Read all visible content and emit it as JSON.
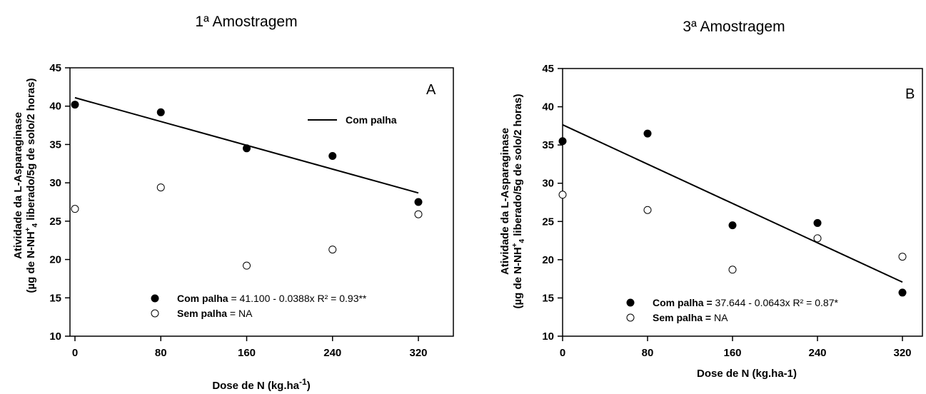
{
  "chart_data": [
    {
      "type": "scatter",
      "title": "1ª Amostragem",
      "panel_label": "A",
      "xlabel": "Dose de N (kg.ha-1)",
      "xlabel_main": "Dose de N (kg.ha",
      "xlabel_sup": "-1",
      "xlabel_end": ")",
      "ylabel_line1": "Atividade da L-Asparaginase",
      "ylabel_line2": "(µg de N-NH+4 liberado/5g de solo/2 horas)",
      "ylabel_line2_pre": "(µg de N-NH",
      "ylabel_line2_sup": "+",
      "ylabel_line2_sub": "4",
      "ylabel_line2_post": " liberado/5g de solo/2 horas)",
      "x_ticks": [
        "0",
        "80",
        "160",
        "240",
        "320"
      ],
      "y_ticks": [
        "10",
        "15",
        "20",
        "25",
        "30",
        "35",
        "40",
        "45"
      ],
      "xlim": [
        0,
        350
      ],
      "ylim": [
        10,
        45
      ],
      "grid": false,
      "series": [
        {
          "name": "Com palha",
          "marker": "filled",
          "x": [
            0,
            80,
            160,
            240,
            320
          ],
          "y": [
            40.2,
            39.2,
            34.5,
            33.5,
            27.5
          ]
        },
        {
          "name": "Sem palha",
          "marker": "open",
          "x": [
            0,
            80,
            160,
            240,
            320
          ],
          "y": [
            26.6,
            29.4,
            19.2,
            21.3,
            25.9
          ]
        }
      ],
      "fit_line": {
        "intercept": 41.1,
        "slope": -0.0388,
        "x_range": [
          0,
          320
        ]
      },
      "line_legend": "Com palha",
      "legend_entries": [
        {
          "name": "Com palha",
          "eq": " = 41.100 - 0.0388x R² = 0.93**",
          "marker": "filled"
        },
        {
          "name": "Sem palha",
          "eq": " = NA",
          "marker": "open"
        }
      ]
    },
    {
      "type": "scatter",
      "title": "3ª Amostragem",
      "panel_label": "B",
      "xlabel": "Dose de N (kg.ha-1)",
      "ylabel_line1": "Atividade da L-Asparaginase",
      "ylabel_line2": "(µg de N-NH+4 liberado/5g de solo/2 horas)",
      "ylabel_line2_pre": "(µg de N-NH",
      "ylabel_line2_sup": "+",
      "ylabel_line2_sub": "4",
      "ylabel_line2_post": " liberado/5g de solo/2 horas)",
      "x_ticks": [
        "0",
        "80",
        "160",
        "240",
        "320"
      ],
      "y_ticks": [
        "10",
        "15",
        "20",
        "25",
        "30",
        "35",
        "40",
        "45"
      ],
      "xlim": [
        0,
        340
      ],
      "ylim": [
        10,
        45
      ],
      "grid": false,
      "series": [
        {
          "name": "Com palha",
          "marker": "filled",
          "x": [
            0,
            80,
            160,
            240,
            320
          ],
          "y": [
            35.5,
            36.5,
            24.5,
            24.8,
            15.7
          ]
        },
        {
          "name": "Sem palha",
          "marker": "open",
          "x": [
            0,
            80,
            160,
            240,
            320
          ],
          "y": [
            28.5,
            26.5,
            18.7,
            22.8,
            20.4
          ]
        }
      ],
      "fit_line": {
        "intercept": 37.644,
        "slope": -0.0643,
        "x_range": [
          0,
          320
        ]
      },
      "legend_entries": [
        {
          "name": "Com palha",
          "eq": " 37.644 - 0.0643x R² = 0.87*",
          "name_suffix": " =",
          "marker": "filled"
        },
        {
          "name": "Sem palha",
          "eq": " NA",
          "name_suffix": " =",
          "marker": "open"
        }
      ]
    }
  ]
}
